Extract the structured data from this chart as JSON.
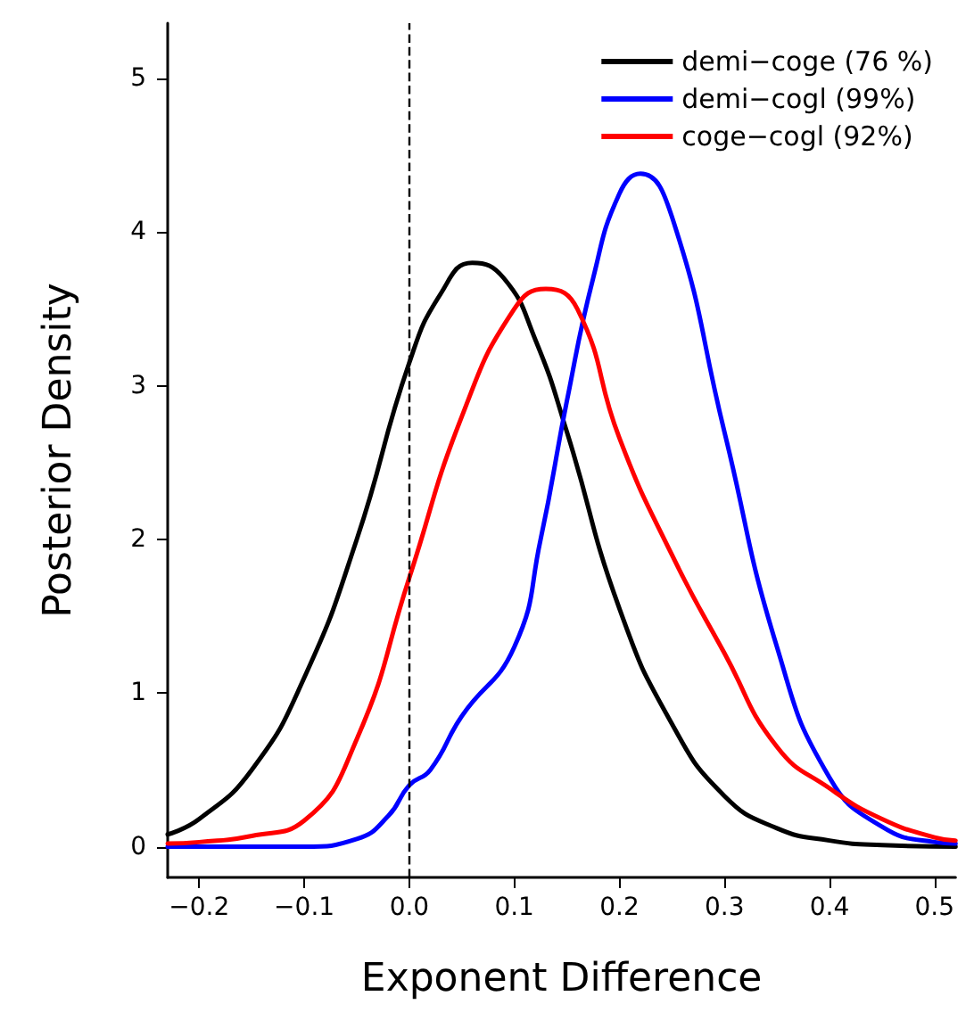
{
  "chart_data": {
    "type": "line",
    "xlabel": "Exponent Difference",
    "ylabel": "Posterior Density",
    "xlim": [
      -0.23,
      0.52
    ],
    "ylim": [
      -0.2,
      5.36
    ],
    "xticks": [
      {
        "value": -0.2,
        "label": "−0.2"
      },
      {
        "value": -0.1,
        "label": "−0.1"
      },
      {
        "value": 0,
        "label": "0.0"
      },
      0.1,
      0.2,
      0.3,
      0.4,
      0.5
    ],
    "yticks": [
      0,
      1,
      2,
      3,
      4,
      5
    ],
    "grid": false,
    "legend": "top right",
    "marker": "none",
    "line_style": "solid",
    "ref_lines": [
      {
        "axis": "x",
        "value": 0,
        "color": "#000000",
        "line_style": "dashed"
      }
    ],
    "series": [
      {
        "name": "demi−coge (76 %)",
        "color": "#000000",
        "x": [
          -0.23,
          -0.2,
          -0.15,
          -0.1,
          -0.05,
          0,
          0.03,
          0.06,
          0.09,
          0.12,
          0.15,
          0.2,
          0.25,
          0.3,
          0.35,
          0.4,
          0.45,
          0.52
        ],
        "values": [
          0.08,
          0.18,
          0.5,
          1.1,
          2.0,
          3.15,
          3.6,
          3.8,
          3.7,
          3.3,
          2.7,
          1.55,
          0.8,
          0.33,
          0.12,
          0.04,
          0.01,
          0
        ]
      },
      {
        "name": "demi−cogl (99%)",
        "color": "#0000ff",
        "x": [
          -0.23,
          -0.1,
          -0.05,
          -0.02,
          0,
          0.02,
          0.05,
          0.1,
          0.125,
          0.15,
          0.175,
          0.2,
          0.22,
          0.25,
          0.3,
          0.35,
          0.4,
          0.45,
          0.5,
          0.52
        ],
        "values": [
          0,
          0,
          0.05,
          0.2,
          0.4,
          0.5,
          0.85,
          1.3,
          2.0,
          2.9,
          3.7,
          4.25,
          4.38,
          4.1,
          2.7,
          1.3,
          0.45,
          0.13,
          0.03,
          0.02
        ]
      },
      {
        "name": "coge−cogl (92%)",
        "color": "#ff0000",
        "x": [
          -0.23,
          -0.2,
          -0.15,
          -0.1,
          -0.05,
          0,
          0.05,
          0.1,
          0.13,
          0.16,
          0.2,
          0.25,
          0.3,
          0.35,
          0.4,
          0.45,
          0.5,
          0.52
        ],
        "values": [
          0.02,
          0.03,
          0.07,
          0.17,
          0.7,
          1.75,
          2.8,
          3.5,
          3.63,
          3.5,
          2.66,
          1.9,
          1.26,
          0.65,
          0.38,
          0.18,
          0.06,
          0.04
        ]
      }
    ]
  }
}
